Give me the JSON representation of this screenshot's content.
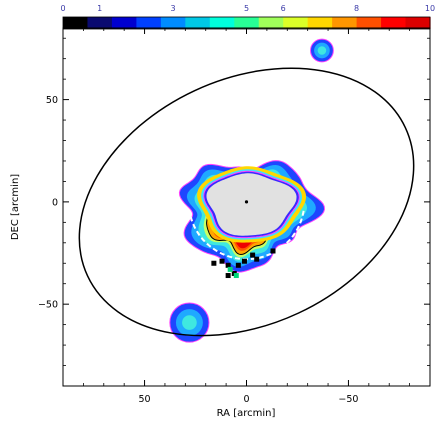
{
  "chart_data": {
    "type": "heatmap",
    "title": "",
    "xlabel": "RA [arcmin]",
    "ylabel": "DEC [arcmin]",
    "xlim": [
      90,
      -90
    ],
    "ylim": [
      -90,
      85
    ],
    "x_reversed": true,
    "x_ticks": [
      50,
      0,
      -50
    ],
    "x_tick_labels": [
      "50",
      "0",
      "−50"
    ],
    "y_ticks": [
      50,
      0,
      -50
    ],
    "y_tick_labels": [
      "50",
      "0",
      "−50"
    ],
    "colorbar": {
      "position": "top",
      "range": [
        0,
        10
      ],
      "tick_values": [
        0,
        1,
        3,
        5,
        6,
        8,
        10
      ],
      "tick_labels": [
        "0",
        "1",
        "3",
        "5",
        "6",
        "8",
        "10"
      ],
      "colors": [
        "#000000",
        "#0a0a70",
        "#0000d0",
        "#0040ff",
        "#008cff",
        "#00c8e6",
        "#00ffdc",
        "#28ff96",
        "#a0ff5a",
        "#dcff28",
        "#ffd700",
        "#ff9600",
        "#ff5000",
        "#ff0000",
        "#dc0000"
      ]
    },
    "ring": {
      "levels": [
        {
          "level": 1,
          "color": "#1e46ff",
          "outline": "#ff40ff",
          "scale": 1.0
        },
        {
          "level": 2,
          "color": "#1fa9ff",
          "outline": "",
          "scale": 0.9
        },
        {
          "level": 3,
          "color": "#3fe8e0",
          "outline": "",
          "scale": 0.8
        },
        {
          "level": 4,
          "color": "#c8ff64",
          "outline": "",
          "scale": 0.72
        },
        {
          "level": 5,
          "color": "#ffa600",
          "outline": "#000000",
          "scale": 0.67
        },
        {
          "level": 6,
          "color": "#ff5500",
          "outline": "",
          "scale": 0.61
        },
        {
          "level": 7,
          "color": "#ee0000",
          "outline": "",
          "scale": 0.57
        }
      ],
      "hole_color": "#e1e1e1"
    },
    "center_marker": {
      "ra": 0,
      "dec": 0
    },
    "dashed_arc": {
      "center_ra": 0,
      "center_dec": 0,
      "radius_ra": 27,
      "radius_dec": 28,
      "color": "#ffffff"
    },
    "ellipse": {
      "center_ra": 0,
      "center_dec": 0,
      "semi_major": 86,
      "semi_minor": 60,
      "angle_deg": -25,
      "color": "#000000"
    },
    "black_points": [
      {
        "ra": 16,
        "dec": -30
      },
      {
        "ra": 12,
        "dec": -29
      },
      {
        "ra": 9,
        "dec": -31
      },
      {
        "ra": 4,
        "dec": -31
      },
      {
        "ra": 1,
        "dec": -29
      },
      {
        "ra": -3,
        "dec": -26
      },
      {
        "ra": -5,
        "dec": -28
      },
      {
        "ra": -13,
        "dec": -24
      },
      {
        "ra": 6,
        "dec": -35
      },
      {
        "ra": 9,
        "dec": -36
      }
    ],
    "green_points": [
      {
        "ra": 8,
        "dec": -33
      },
      {
        "ra": 5,
        "dec": -36
      }
    ],
    "blobs": [
      {
        "ra": -37,
        "dec": 74,
        "r": 3.5
      },
      {
        "ra": 28,
        "dec": -59,
        "r": 6
      }
    ]
  }
}
